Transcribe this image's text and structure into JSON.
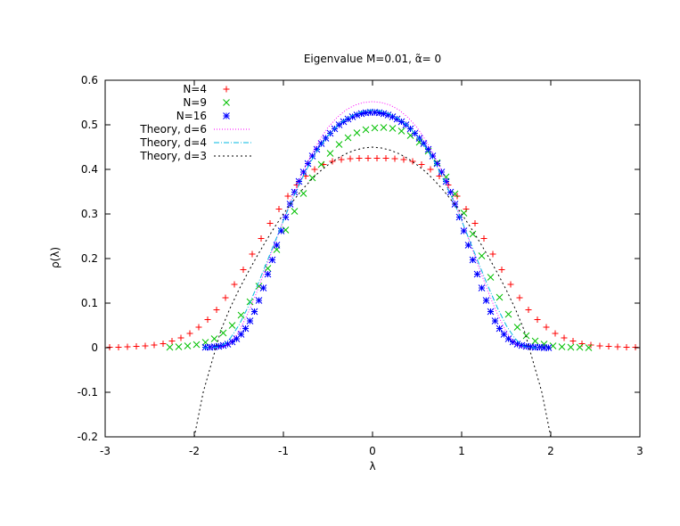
{
  "chart_data": {
    "type": "scatter",
    "title": "Eigenvalue M=0.01, α̃= 0",
    "xlabel": "λ",
    "ylabel": "ρ(λ)",
    "xlim": [
      -3,
      3
    ],
    "ylim": [
      -0.2,
      0.6
    ],
    "xticks": [
      -3,
      -2,
      -1,
      0,
      1,
      2,
      3
    ],
    "xtick_labels": [
      "-3",
      "-2",
      "-1",
      "0",
      "1",
      "2",
      "3"
    ],
    "yticks": [
      -0.2,
      -0.1,
      0,
      0.1,
      0.2,
      0.3,
      0.4,
      0.5,
      0.6
    ],
    "ytick_labels": [
      "-0.2",
      "-0.1",
      "0",
      "0.1",
      "0.2",
      "0.3",
      "0.4",
      "0.5",
      "0.6"
    ],
    "legend_position": "top-left",
    "grid": false,
    "series": [
      {
        "name": "N=4",
        "style": "marker",
        "marker": "plus",
        "color": "#ff0000",
        "x": [
          -2.95,
          -2.85,
          -2.75,
          -2.65,
          -2.55,
          -2.45,
          -2.35,
          -2.25,
          -2.15,
          -2.05,
          -1.95,
          -1.85,
          -1.75,
          -1.65,
          -1.55,
          -1.45,
          -1.35,
          -1.25,
          -1.15,
          -1.05,
          -0.95,
          -0.85,
          -0.75,
          -0.65,
          -0.55,
          -0.45,
          -0.35,
          -0.25,
          -0.15,
          -0.05,
          0.05,
          0.15,
          0.25,
          0.35,
          0.45,
          0.55,
          0.65,
          0.75,
          0.85,
          0.95,
          1.05,
          1.15,
          1.25,
          1.35,
          1.45,
          1.55,
          1.65,
          1.75,
          1.85,
          1.95,
          2.05,
          2.15,
          2.25,
          2.35,
          2.45,
          2.55,
          2.65,
          2.75,
          2.85,
          2.95
        ],
        "y": [
          0.001,
          0.001,
          0.002,
          0.003,
          0.004,
          0.006,
          0.009,
          0.015,
          0.022,
          0.032,
          0.046,
          0.063,
          0.085,
          0.112,
          0.142,
          0.175,
          0.21,
          0.245,
          0.279,
          0.311,
          0.34,
          0.365,
          0.385,
          0.4,
          0.411,
          0.418,
          0.422,
          0.424,
          0.425,
          0.425,
          0.425,
          0.425,
          0.424,
          0.422,
          0.418,
          0.411,
          0.4,
          0.385,
          0.365,
          0.34,
          0.311,
          0.279,
          0.245,
          0.21,
          0.175,
          0.142,
          0.112,
          0.085,
          0.063,
          0.046,
          0.032,
          0.022,
          0.015,
          0.009,
          0.006,
          0.004,
          0.003,
          0.002,
          0.001,
          0.001
        ]
      },
      {
        "name": "N=9",
        "style": "marker",
        "marker": "cross",
        "color": "#00c000",
        "x": [
          -2.275,
          -2.175,
          -2.075,
          -1.975,
          -1.875,
          -1.775,
          -1.675,
          -1.575,
          -1.475,
          -1.375,
          -1.275,
          -1.175,
          -1.075,
          -0.975,
          -0.875,
          -0.775,
          -0.675,
          -0.575,
          -0.475,
          -0.375,
          -0.275,
          -0.175,
          -0.075,
          0.025,
          0.125,
          0.225,
          0.325,
          0.425,
          0.525,
          0.625,
          0.725,
          0.825,
          0.925,
          1.025,
          1.125,
          1.225,
          1.325,
          1.425,
          1.525,
          1.625,
          1.725,
          1.825,
          1.925,
          2.025,
          2.125,
          2.225,
          2.325,
          2.425
        ],
        "y": [
          0.001,
          0.002,
          0.004,
          0.007,
          0.012,
          0.02,
          0.033,
          0.05,
          0.073,
          0.103,
          0.138,
          0.178,
          0.22,
          0.264,
          0.306,
          0.346,
          0.381,
          0.411,
          0.436,
          0.456,
          0.471,
          0.482,
          0.489,
          0.493,
          0.494,
          0.492,
          0.486,
          0.476,
          0.461,
          0.441,
          0.415,
          0.383,
          0.345,
          0.302,
          0.255,
          0.206,
          0.158,
          0.113,
          0.075,
          0.046,
          0.027,
          0.015,
          0.008,
          0.004,
          0.002,
          0.001,
          0.001,
          0.0
        ]
      },
      {
        "name": "N=16",
        "style": "marker",
        "marker": "star",
        "color": "#0000ff",
        "x": [
          -1.875,
          -1.825,
          -1.775,
          -1.725,
          -1.675,
          -1.625,
          -1.575,
          -1.525,
          -1.475,
          -1.425,
          -1.375,
          -1.325,
          -1.275,
          -1.225,
          -1.175,
          -1.125,
          -1.075,
          -1.025,
          -0.975,
          -0.925,
          -0.875,
          -0.825,
          -0.775,
          -0.725,
          -0.675,
          -0.625,
          -0.575,
          -0.525,
          -0.475,
          -0.425,
          -0.375,
          -0.325,
          -0.275,
          -0.225,
          -0.175,
          -0.125,
          -0.075,
          -0.025,
          0.025,
          0.075,
          0.125,
          0.175,
          0.225,
          0.275,
          0.325,
          0.375,
          0.425,
          0.475,
          0.525,
          0.575,
          0.625,
          0.675,
          0.725,
          0.775,
          0.825,
          0.875,
          0.925,
          0.975,
          1.025,
          1.075,
          1.125,
          1.175,
          1.225,
          1.275,
          1.325,
          1.375,
          1.425,
          1.475,
          1.525,
          1.575,
          1.625,
          1.675,
          1.725,
          1.775,
          1.825,
          1.875,
          1.925,
          1.975
        ],
        "y": [
          0.001,
          0.001,
          0.002,
          0.003,
          0.005,
          0.008,
          0.013,
          0.02,
          0.03,
          0.043,
          0.06,
          0.081,
          0.106,
          0.134,
          0.165,
          0.197,
          0.23,
          0.262,
          0.293,
          0.322,
          0.349,
          0.373,
          0.394,
          0.413,
          0.43,
          0.445,
          0.458,
          0.47,
          0.481,
          0.491,
          0.5,
          0.507,
          0.513,
          0.518,
          0.522,
          0.525,
          0.527,
          0.528,
          0.528,
          0.527,
          0.525,
          0.522,
          0.518,
          0.513,
          0.507,
          0.5,
          0.491,
          0.481,
          0.47,
          0.458,
          0.445,
          0.43,
          0.413,
          0.394,
          0.373,
          0.349,
          0.322,
          0.293,
          0.262,
          0.23,
          0.197,
          0.165,
          0.134,
          0.106,
          0.081,
          0.06,
          0.043,
          0.03,
          0.02,
          0.013,
          0.008,
          0.005,
          0.003,
          0.002,
          0.001,
          0.001,
          0.0,
          0.0
        ]
      },
      {
        "name": "Theory, d=6",
        "style": "line",
        "dash": "1,2",
        "color": "#ff00ff",
        "x": [
          -1.9,
          -1.8,
          -1.7,
          -1.6,
          -1.5,
          -1.4,
          -1.3,
          -1.2,
          -1.1,
          -1.0,
          -0.9,
          -0.8,
          -0.7,
          -0.6,
          -0.5,
          -0.4,
          -0.3,
          -0.2,
          -0.1,
          0.0,
          0.1,
          0.2,
          0.3,
          0.4,
          0.5,
          0.6,
          0.7,
          0.8,
          0.9,
          1.0,
          1.1,
          1.2,
          1.3,
          1.4,
          1.5,
          1.6,
          1.7,
          1.8,
          1.9
        ],
        "y": [
          0.0,
          0.0,
          0.0,
          0.008,
          0.036,
          0.076,
          0.124,
          0.177,
          0.232,
          0.286,
          0.338,
          0.386,
          0.428,
          0.464,
          0.494,
          0.516,
          0.533,
          0.544,
          0.55,
          0.552,
          0.55,
          0.544,
          0.533,
          0.516,
          0.494,
          0.464,
          0.428,
          0.386,
          0.338,
          0.286,
          0.232,
          0.177,
          0.124,
          0.076,
          0.036,
          0.008,
          0.0,
          0.0,
          0.0
        ]
      },
      {
        "name": "Theory, d=4",
        "style": "line",
        "dash": "6,2,1,2",
        "color": "#00b8e0",
        "x": [
          -1.9,
          -1.8,
          -1.7,
          -1.6,
          -1.5,
          -1.4,
          -1.3,
          -1.2,
          -1.1,
          -1.0,
          -0.9,
          -0.8,
          -0.7,
          -0.6,
          -0.5,
          -0.4,
          -0.3,
          -0.2,
          -0.1,
          0.0,
          0.1,
          0.2,
          0.3,
          0.4,
          0.5,
          0.6,
          0.7,
          0.8,
          0.9,
          1.0,
          1.1,
          1.2,
          1.3,
          1.4,
          1.5,
          1.6,
          1.7,
          1.8,
          1.9
        ],
        "y": [
          0.0,
          0.0,
          0.002,
          0.02,
          0.05,
          0.09,
          0.136,
          0.185,
          0.235,
          0.285,
          0.333,
          0.376,
          0.415,
          0.448,
          0.475,
          0.497,
          0.513,
          0.524,
          0.531,
          0.533,
          0.531,
          0.524,
          0.513,
          0.497,
          0.475,
          0.448,
          0.415,
          0.376,
          0.333,
          0.285,
          0.235,
          0.185,
          0.136,
          0.09,
          0.05,
          0.02,
          0.002,
          0.0,
          0.0
        ]
      },
      {
        "name": "Theory, d=3",
        "style": "line",
        "dash": "2,3",
        "color": "#000000",
        "x": [
          -2.0,
          -1.9,
          -1.8,
          -1.7,
          -1.6,
          -1.5,
          -1.4,
          -1.3,
          -1.2,
          -1.1,
          -1.0,
          -0.9,
          -0.8,
          -0.7,
          -0.6,
          -0.5,
          -0.4,
          -0.3,
          -0.2,
          -0.1,
          0.0,
          0.1,
          0.2,
          0.3,
          0.4,
          0.5,
          0.6,
          0.7,
          0.8,
          0.9,
          1.0,
          1.1,
          1.2,
          1.3,
          1.4,
          1.5,
          1.6,
          1.7,
          1.8,
          1.9,
          2.0
        ],
        "y": [
          -0.2,
          -0.1,
          -0.03,
          0.04,
          0.088,
          0.13,
          0.168,
          0.204,
          0.238,
          0.27,
          0.3,
          0.327,
          0.352,
          0.374,
          0.394,
          0.41,
          0.424,
          0.435,
          0.443,
          0.448,
          0.45,
          0.448,
          0.443,
          0.435,
          0.424,
          0.41,
          0.394,
          0.374,
          0.352,
          0.327,
          0.3,
          0.27,
          0.238,
          0.204,
          0.168,
          0.13,
          0.088,
          0.04,
          -0.03,
          -0.1,
          -0.2
        ]
      }
    ]
  }
}
